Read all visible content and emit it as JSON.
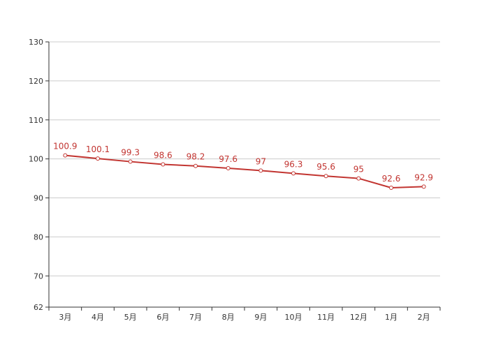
{
  "chart_data": {
    "type": "line",
    "title": "",
    "xlabel": "",
    "ylabel": "",
    "categories": [
      "3月",
      "4月",
      "5月",
      "6月",
      "7月",
      "8月",
      "9月",
      "10月",
      "11月",
      "12月",
      "1月",
      "2月"
    ],
    "series": [
      {
        "values": [
          100.9,
          100.1,
          99.3,
          98.6,
          98.2,
          97.6,
          97,
          96.3,
          95.6,
          95,
          92.6,
          92.9
        ],
        "color": "#c23531"
      }
    ],
    "ylim": [
      62,
      130
    ],
    "yticks": [
      62,
      70,
      80,
      90,
      100,
      110,
      120,
      130
    ],
    "grid": true,
    "legend": "none"
  }
}
